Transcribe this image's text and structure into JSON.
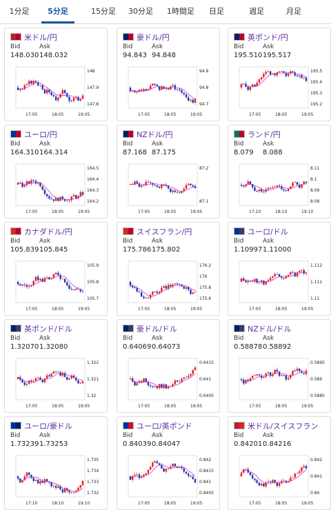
{
  "tabs": [
    {
      "label": "1分足",
      "active": false
    },
    {
      "label": "5分足",
      "active": true
    },
    {
      "label": "15分足",
      "active": false
    },
    {
      "label": "30分足",
      "active": false
    },
    {
      "label": "1時間足",
      "active": false
    },
    {
      "label": "日足",
      "active": false
    },
    {
      "label": "週足",
      "active": false
    },
    {
      "label": "月足",
      "active": false
    }
  ],
  "labels": {
    "bid": "Bid",
    "ask": "Ask"
  },
  "colors": {
    "pair_name": "#5b2b9e",
    "bull": "#e02020",
    "bear": "#2233aa",
    "ma": "#cc33cc",
    "tab_active": "#1a53a6"
  },
  "cards": [
    {
      "pair": "米ドル/円",
      "flag": "us-jp",
      "bid": "148.030",
      "ask": "148.032",
      "yticks": [
        "148",
        "147.9",
        "147.8"
      ],
      "xticks": [
        "17:05",
        "18:05",
        "19:05"
      ]
    },
    {
      "pair": "豪ドル/円",
      "flag": "au-jp",
      "bid": "94.843",
      "ask": "94.848",
      "yticks": [
        "94.9",
        "94.8",
        "94.7"
      ],
      "xticks": [
        "17:05",
        "18:05",
        "19:05"
      ]
    },
    {
      "pair": "英ポンド/円",
      "flag": "gb-jp",
      "bid": "195.510",
      "ask": "195.517",
      "yticks": [
        "195.5",
        "195.4",
        "195.3",
        "195.2"
      ],
      "xticks": [
        "17:05",
        "18:05",
        "19:05"
      ]
    },
    {
      "pair": "ユーロ/円",
      "flag": "eu-jp",
      "bid": "164.310",
      "ask": "164.314",
      "yticks": [
        "164.5",
        "164.4",
        "164.3",
        "164.2"
      ],
      "xticks": [
        "17:05",
        "18:05",
        "19:05"
      ]
    },
    {
      "pair": "NZドル/円",
      "flag": "nz-jp",
      "bid": "87.168",
      "ask": "87.175",
      "yticks": [
        "87.2",
        "87.1"
      ],
      "xticks": [
        "17:05",
        "18:05",
        "19:05"
      ]
    },
    {
      "pair": "ランド/円",
      "flag": "za-jp",
      "bid": "8.079",
      "ask": "8.088",
      "yticks": [
        "8.11",
        "8.1",
        "8.09",
        "8.08"
      ],
      "xticks": [
        "17:10",
        "18:10",
        "19:10"
      ]
    },
    {
      "pair": "カナダドル/円",
      "flag": "ca-jp",
      "bid": "105.839",
      "ask": "105.845",
      "yticks": [
        "105.9",
        "105.8",
        "105.7"
      ],
      "xticks": [
        "17:05",
        "18:05",
        "19:05"
      ]
    },
    {
      "pair": "スイスフラン/円",
      "flag": "ch-jp",
      "bid": "175.786",
      "ask": "175.802",
      "yticks": [
        "176.2",
        "176",
        "175.8",
        "175.6"
      ],
      "xticks": [
        "17:05",
        "18:05",
        "19:05"
      ]
    },
    {
      "pair": "ユーロ/ドル",
      "flag": "eu-us",
      "bid": "1.10997",
      "ask": "1.11000",
      "yticks": [
        "1.112",
        "1.111",
        "1.11"
      ],
      "xticks": [
        "17:05",
        "18:05",
        "19:05"
      ]
    },
    {
      "pair": "英ポンド/ドル",
      "flag": "gb-us",
      "bid": "1.32070",
      "ask": "1.32080",
      "yticks": [
        "1.322",
        "1.321",
        "1.32"
      ],
      "xticks": [
        "17:05",
        "18:05",
        "19:05"
      ]
    },
    {
      "pair": "豪ドル/ドル",
      "flag": "au-us",
      "bid": "0.64069",
      "ask": "0.64073",
      "yticks": [
        "0.6415",
        "0.641",
        "0.6405"
      ],
      "xticks": [
        "17:05",
        "18:05",
        "19:05"
      ]
    },
    {
      "pair": "NZドル/ドル",
      "flag": "nz-us",
      "bid": "0.58878",
      "ask": "0.58892",
      "yticks": [
        "0.5895",
        "0.589",
        "0.5885"
      ],
      "xticks": [
        "17:05",
        "18:05",
        "19:05"
      ]
    },
    {
      "pair": "ユーロ/豪ドル",
      "flag": "eu-au",
      "bid": "1.73239",
      "ask": "1.73253",
      "yticks": [
        "1.735",
        "1.734",
        "1.733",
        "1.732"
      ],
      "xticks": [
        "17:10",
        "18:10",
        "19:10"
      ]
    },
    {
      "pair": "ユーロ/英ポンド",
      "flag": "eu-gb",
      "bid": "0.84039",
      "ask": "0.84047",
      "yticks": [
        "0.842",
        "0.8415",
        "0.841",
        "0.8405"
      ],
      "xticks": [
        "17:05",
        "18:05",
        "19:05"
      ]
    },
    {
      "pair": "米ドル/スイスフラン",
      "flag": "us-ch",
      "bid": "0.84201",
      "ask": "0.84216",
      "yticks": [
        "0.842",
        "0.841",
        "0.84"
      ],
      "xticks": [
        "17:05",
        "18:05",
        "19:05"
      ]
    }
  ]
}
